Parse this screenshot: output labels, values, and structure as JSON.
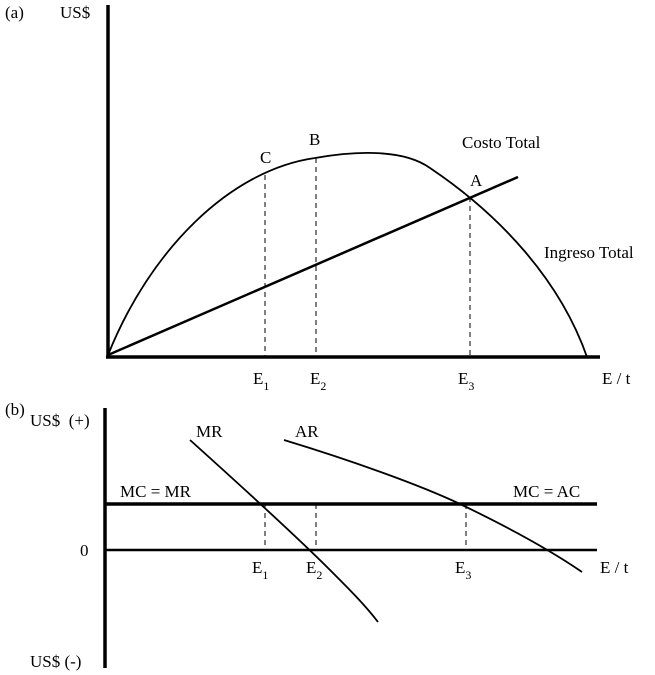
{
  "panel_a": {
    "label": "(a)",
    "y_axis": "US$",
    "x_axis": "E / t",
    "points": {
      "c": "C",
      "b": "B",
      "a": "A"
    },
    "curves": {
      "cost": "Costo Total",
      "revenue": "Ingreso Total"
    },
    "x_marks": [
      {
        "letter": "E",
        "sub": "1"
      },
      {
        "letter": "E",
        "sub": "2"
      },
      {
        "letter": "E",
        "sub": "3"
      }
    ]
  },
  "panel_b": {
    "label": "(b)",
    "y_axis_top": "US$  (+)",
    "y_axis_bottom": "US$ (-)",
    "zero": "0",
    "x_axis": "E / t",
    "curves": {
      "mr": "MR",
      "ar": "AR",
      "mc_mr": "MC = MR",
      "mc_ac": "MC = AC"
    },
    "x_marks": [
      {
        "letter": "E",
        "sub": "1"
      },
      {
        "letter": "E",
        "sub": "2"
      },
      {
        "letter": "E",
        "sub": "3"
      }
    ]
  }
}
